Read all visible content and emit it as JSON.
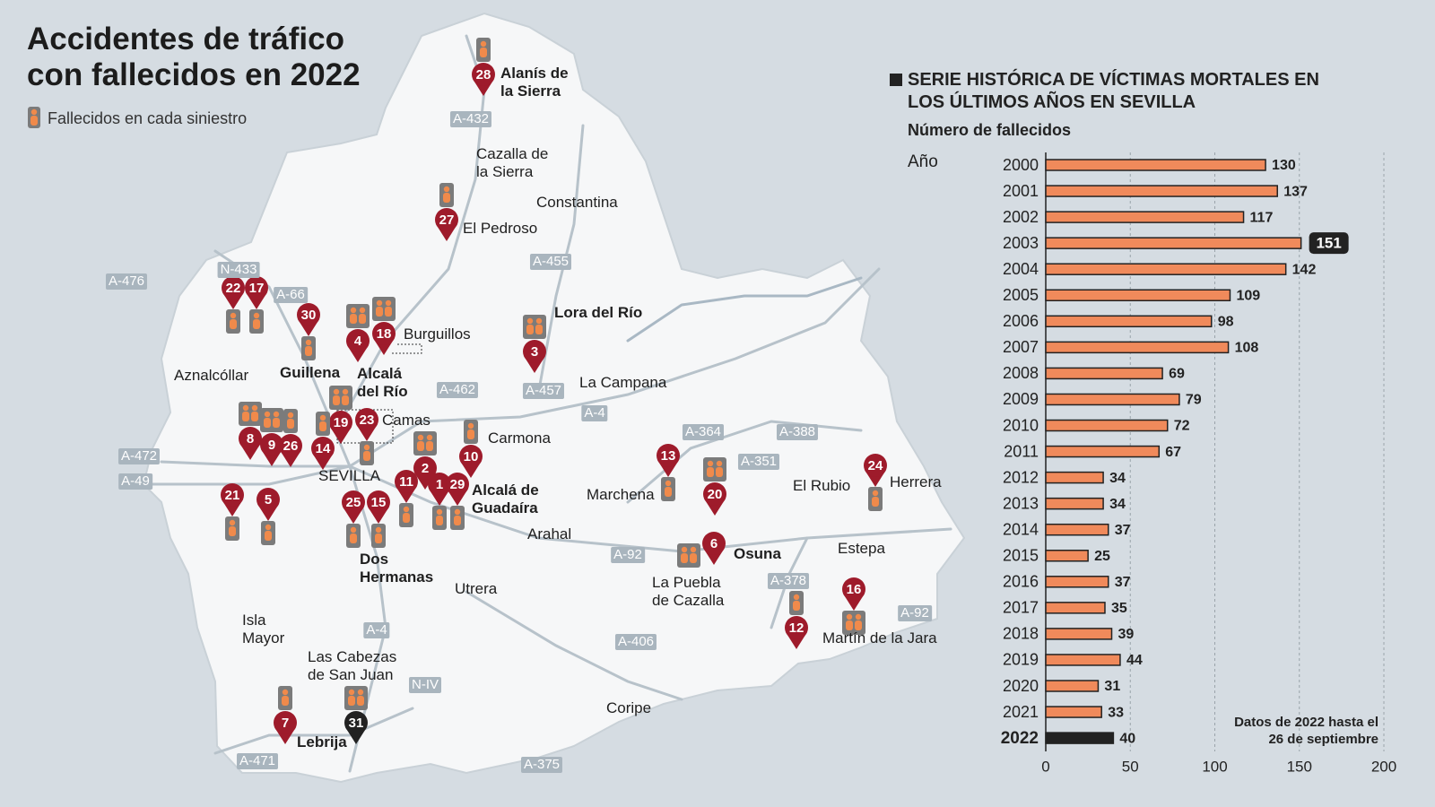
{
  "title": "Accidentes de tráfico con fallecidos en 2022",
  "legend": "Fallecidos en cada siniestro",
  "map": {
    "places": [
      {
        "name": "Alanís de la Sierra",
        "bold": true
      },
      {
        "name": "Cazalla de la Sierra",
        "bold": false
      },
      {
        "name": "Constantina",
        "bold": false
      },
      {
        "name": "El Pedroso",
        "bold": false
      },
      {
        "name": "Lora del Río",
        "bold": true
      },
      {
        "name": "Burguillos",
        "bold": false
      },
      {
        "name": "Aznalcóllar",
        "bold": false
      },
      {
        "name": "Guillena",
        "bold": true
      },
      {
        "name": "Alcalá del Río",
        "bold": true
      },
      {
        "name": "La Campana",
        "bold": false
      },
      {
        "name": "Camas",
        "bold": false
      },
      {
        "name": "Carmona",
        "bold": false
      },
      {
        "name": "SEVILLA",
        "bold": false
      },
      {
        "name": "Alcalá de Guadaíra",
        "bold": true
      },
      {
        "name": "Marchena",
        "bold": false
      },
      {
        "name": "El Rubio",
        "bold": false
      },
      {
        "name": "Herrera",
        "bold": false
      },
      {
        "name": "Arahal",
        "bold": false
      },
      {
        "name": "Osuna",
        "bold": true
      },
      {
        "name": "Estepa",
        "bold": false
      },
      {
        "name": "Dos Hermanas",
        "bold": true
      },
      {
        "name": "Utrera",
        "bold": false
      },
      {
        "name": "La Puebla de Cazalla",
        "bold": false
      },
      {
        "name": "Martín de la Jara",
        "bold": false
      },
      {
        "name": "Isla Mayor",
        "bold": false
      },
      {
        "name": "Las Cabezas de San Juan",
        "bold": false
      },
      {
        "name": "Coripe",
        "bold": false
      },
      {
        "name": "Lebrija",
        "bold": true
      }
    ],
    "roads": [
      "A-432",
      "A-455",
      "A-476",
      "N-433",
      "A-66",
      "A-462",
      "A-457",
      "A-4",
      "A-364",
      "A-388",
      "A-351",
      "A-472",
      "A-49",
      "A-92",
      "A-378",
      "A-92",
      "A-406",
      "A-4",
      "N-IV",
      "A-471",
      "A-375"
    ],
    "marker_color": "#9e1b2b",
    "icon_color": "#f08a4b",
    "markers": [
      {
        "label": 28,
        "deaths": 1
      },
      {
        "label": 27,
        "deaths": 1
      },
      {
        "label": 22,
        "deaths": 1
      },
      {
        "label": 17,
        "deaths": 1
      },
      {
        "label": 30,
        "deaths": 1
      },
      {
        "label": 4,
        "deaths": 2
      },
      {
        "label": 18,
        "deaths": 2
      },
      {
        "label": 3,
        "deaths": 2
      },
      {
        "label": 19,
        "deaths": 2
      },
      {
        "label": 23,
        "deaths": 1
      },
      {
        "label": 8,
        "deaths": 2
      },
      {
        "label": 9,
        "deaths": 2
      },
      {
        "label": 26,
        "deaths": 1
      },
      {
        "label": 14,
        "deaths": 1
      },
      {
        "label": 21,
        "deaths": 1
      },
      {
        "label": 5,
        "deaths": 1
      },
      {
        "label": 2,
        "deaths": 2
      },
      {
        "label": 1,
        "deaths": 1
      },
      {
        "label": 29,
        "deaths": 1
      },
      {
        "label": 11,
        "deaths": 1
      },
      {
        "label": 10,
        "deaths": 1
      },
      {
        "label": 25,
        "deaths": 1
      },
      {
        "label": 15,
        "deaths": 1
      },
      {
        "label": 13,
        "deaths": 1
      },
      {
        "label": 20,
        "deaths": 2
      },
      {
        "label": 24,
        "deaths": 1
      },
      {
        "label": 6,
        "deaths": 2
      },
      {
        "label": 12,
        "deaths": 1
      },
      {
        "label": 16,
        "deaths": 2
      },
      {
        "label": 7,
        "deaths": 1
      },
      {
        "label": 31,
        "deaths": 2,
        "color": "#222222"
      }
    ]
  },
  "chart_data": {
    "type": "bar",
    "orientation": "horizontal",
    "title": "SERIE HISTÓRICA DE VÍCTIMAS MORTALES EN LOS ÚLTIMOS AÑOS EN SEVILLA",
    "subtitle": "Número de fallecidos",
    "y_label": "Año",
    "note": "Datos de 2022 hasta el 26 de septiembre",
    "categories": [
      "2000",
      "2001",
      "2002",
      "2003",
      "2004",
      "2005",
      "2006",
      "2007",
      "2008",
      "2009",
      "2010",
      "2011",
      "2012",
      "2013",
      "2014",
      "2015",
      "2016",
      "2017",
      "2018",
      "2019",
      "2020",
      "2021",
      "2022"
    ],
    "values": [
      130,
      137,
      117,
      151,
      142,
      109,
      98,
      108,
      69,
      79,
      72,
      67,
      34,
      34,
      37,
      25,
      37,
      35,
      39,
      44,
      31,
      33,
      40
    ],
    "colors": [
      "#f08a5b",
      "#f08a5b",
      "#f08a5b",
      "#f08a5b",
      "#f08a5b",
      "#f08a5b",
      "#f08a5b",
      "#f08a5b",
      "#f08a5b",
      "#f08a5b",
      "#f08a5b",
      "#f08a5b",
      "#f08a5b",
      "#f08a5b",
      "#f08a5b",
      "#f08a5b",
      "#f08a5b",
      "#f08a5b",
      "#f08a5b",
      "#f08a5b",
      "#f08a5b",
      "#f08a5b",
      "#222222"
    ],
    "xlim": [
      0,
      200
    ],
    "xticks": [
      0,
      50,
      100,
      150,
      200
    ],
    "grid": true
  }
}
